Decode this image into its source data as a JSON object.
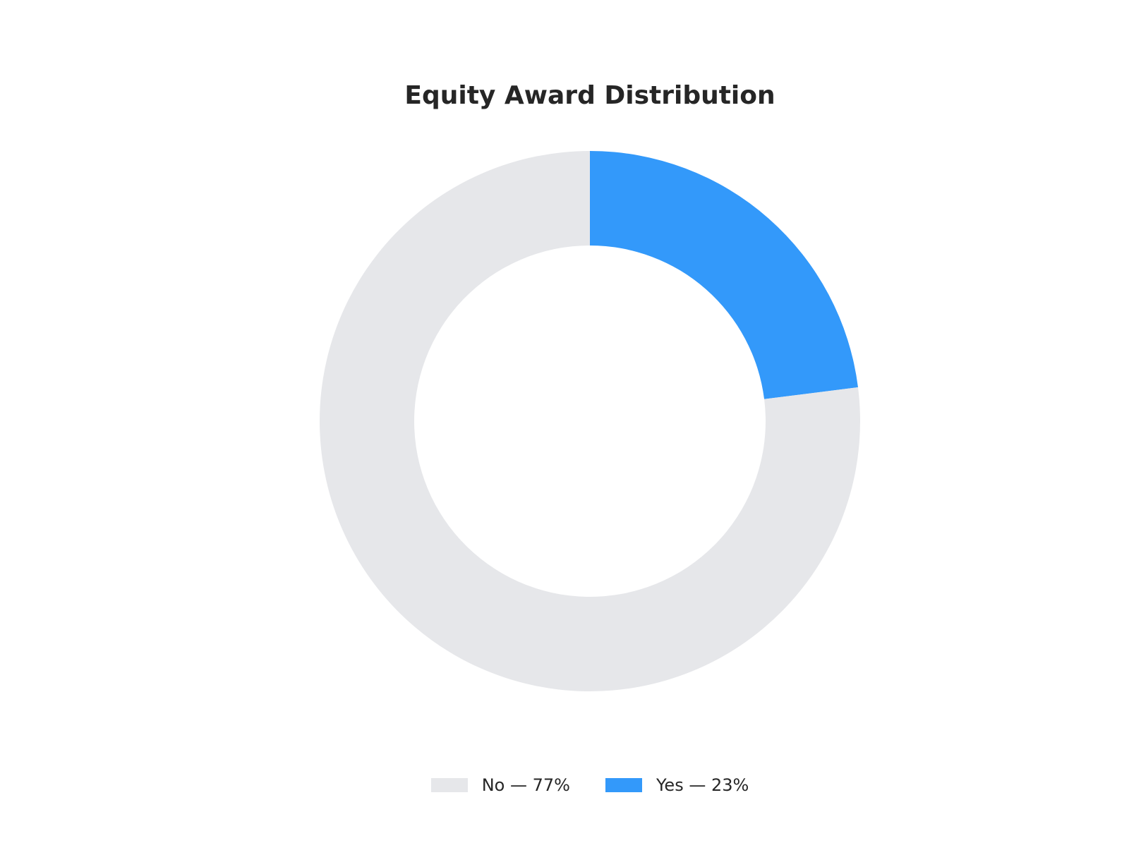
{
  "chart_data": {
    "type": "pie",
    "title": "Equity Award Distribution",
    "donut": true,
    "categories": [
      "No",
      "Yes"
    ],
    "values": [
      77,
      23
    ],
    "unit": "%",
    "colors": [
      "#e6e7ea",
      "#3399fa"
    ],
    "legend_labels": [
      "No — 77%",
      "Yes — 23%"
    ],
    "legend_position": "bottom-center",
    "start_angle": "top",
    "direction": "clockwise"
  }
}
